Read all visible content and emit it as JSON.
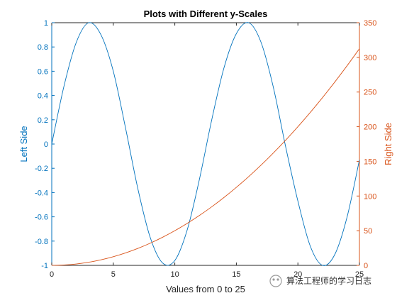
{
  "colors": {
    "left": "#0072BD",
    "right": "#D95319",
    "axis": "#262626",
    "background": "#ffffff"
  },
  "chart_data": {
    "type": "line",
    "title": "Plots with Different y-Scales",
    "xlabel": "Values from 0 to 25",
    "xlim": [
      0,
      25
    ],
    "x_ticks": [
      "0",
      "5",
      "10",
      "15",
      "20",
      "25"
    ],
    "y_left": {
      "label": "Left Side",
      "ylim": [
        -1,
        1
      ],
      "ticks": [
        "1",
        "0.8",
        "0.6",
        "0.4",
        "0.2",
        "0",
        "-0.2",
        "-0.4",
        "-0.6",
        "-0.8",
        "-1"
      ]
    },
    "y_right": {
      "label": "Right Side",
      "ylim": [
        0,
        350
      ],
      "ticks": [
        "350",
        "300",
        "250",
        "200",
        "150",
        "100",
        "50",
        "0"
      ]
    },
    "grid": false,
    "series": [
      {
        "axis": "left",
        "x": [
          0,
          1,
          2,
          3,
          4,
          5,
          6,
          7,
          8,
          9,
          10,
          11,
          12,
          13,
          14,
          15,
          16,
          17,
          18,
          19,
          20,
          21,
          22,
          23,
          24,
          25
        ],
        "y": [
          0,
          0.48,
          0.84,
          1.0,
          0.9,
          0.6,
          0.13,
          -0.37,
          -0.77,
          -0.98,
          -0.96,
          -0.71,
          -0.29,
          0.2,
          0.63,
          0.91,
          1.0,
          0.84,
          0.47,
          -0.02,
          -0.47,
          -0.84,
          -1.0,
          -0.91,
          -0.6,
          -0.13
        ]
      },
      {
        "axis": "right",
        "x": [
          0,
          1,
          2,
          3,
          4,
          5,
          6,
          7,
          8,
          9,
          10,
          11,
          12,
          13,
          14,
          15,
          16,
          17,
          18,
          19,
          20,
          21,
          22,
          23,
          24,
          25
        ],
        "y": [
          0,
          0.5,
          2,
          4.5,
          8,
          12.5,
          18,
          24.5,
          32,
          40.5,
          50,
          60.5,
          72,
          84.5,
          98,
          112.5,
          128,
          144.5,
          162,
          180.5,
          200,
          220.5,
          242,
          264.5,
          288,
          312.5
        ]
      }
    ]
  },
  "watermark": "算法工程师的学习日志"
}
